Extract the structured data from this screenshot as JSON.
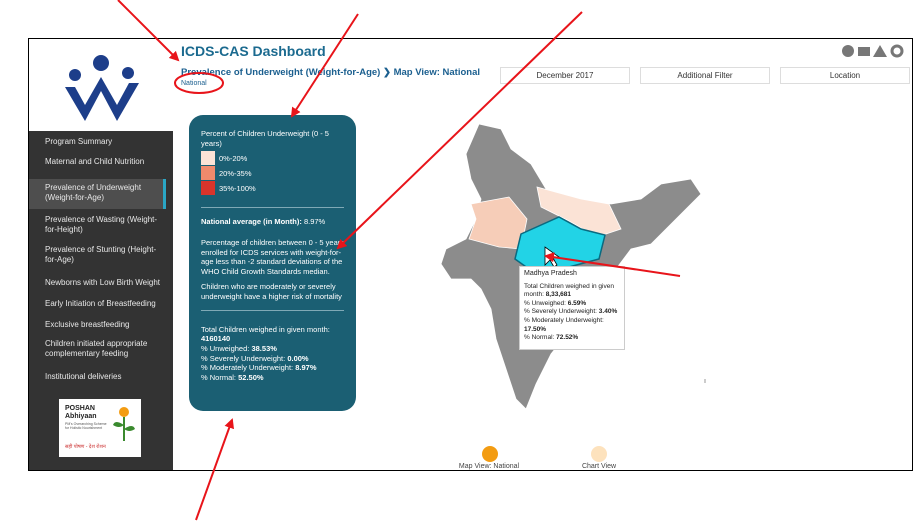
{
  "header": {
    "title": "ICDS-CAS Dashboard",
    "section": "Prevalence of Underweight (Weight-for-Age)",
    "view": "Map View: National",
    "location": "National"
  },
  "filters": [
    "December 2017",
    "Additional Filter",
    "Location"
  ],
  "sidebar": {
    "items": [
      "Program Summary",
      "Maternal and Child Nutrition",
      "Prevalence of Underweight (Weight-for-Age)",
      "Prevalence of Wasting (Weight-for-Height)",
      "Prevalence of Stunting (Height-for-Age)",
      "Newborns with Low Birth Weight",
      "Early Initiation of Breastfeeding",
      "Exclusive breastfeeding",
      "Children initiated appropriate complementary feeding",
      "Institutional deliveries"
    ],
    "poshan": {
      "title": "POSHAN",
      "subtitle": "Abhiyaan",
      "tagline": "PM's Overarching Scheme for Holistic Nourishment",
      "slogan": "सही पोषण - देश रोशन"
    }
  },
  "panel": {
    "title": "Percent of Children Underweight (0 - 5 years)",
    "legend": [
      "0%-20%",
      "20%-35%",
      "35%-100%"
    ],
    "average_label": "National average (in Month):",
    "average_value": "8.97%",
    "description": "Percentage of children between 0 - 5 years enrolled for ICDS services with weight-for-age less than -2 standard deviations of the WHO Child Growth Standards median.",
    "risk": "Children who are moderately or severely underweight have a higher risk of mortality",
    "total_label": "Total Children weighed in given month:",
    "total_value": "4160140",
    "stats": [
      {
        "label": "% Unweighed:",
        "value": "38.53%"
      },
      {
        "label": "% Severely Underweight:",
        "value": "0.00%"
      },
      {
        "label": "% Moderately Underweight:",
        "value": "8.97%"
      },
      {
        "label": "% Normal:",
        "value": "52.50%"
      }
    ]
  },
  "tooltip": {
    "state": "Madhya Pradesh",
    "total_label": "Total Children weighed in given month:",
    "total_value": "8,33,681",
    "stats": [
      {
        "label": "% Unweighed:",
        "value": "6.59%"
      },
      {
        "label": "% Severely Underweight:",
        "value": "3.40%"
      },
      {
        "label": "% Moderately Underweight:",
        "value": "17.50%"
      },
      {
        "label": "% Normal:",
        "value": "72.52%"
      }
    ]
  },
  "views": [
    "Map View: National",
    "Chart View"
  ]
}
